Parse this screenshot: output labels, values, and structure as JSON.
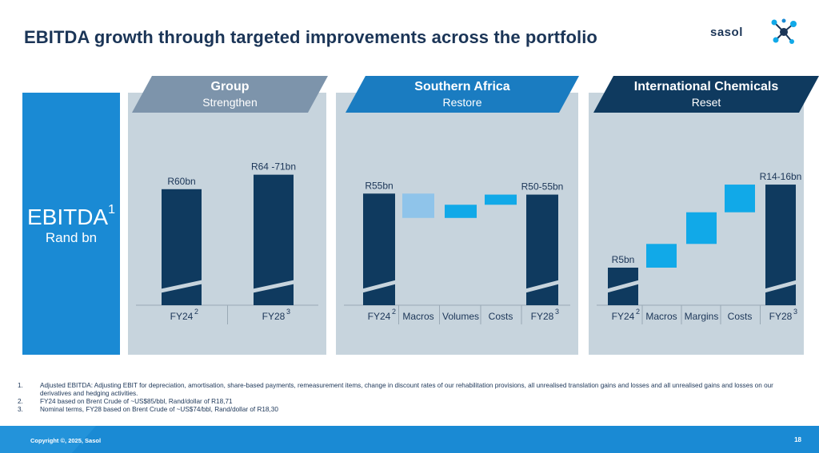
{
  "title": "EBITDA growth through targeted improvements across the portfolio",
  "logo_text": "sasol",
  "left_label": {
    "main": "EBITDA",
    "sup": "1",
    "sub": "Rand bn"
  },
  "colors": {
    "dark": "#0f3a5f",
    "light_blue": "#8fc4ea",
    "cyan": "#11a9e8",
    "panel": "#c7d4dd",
    "accent_blue": "#1a8ad4"
  },
  "chart_data": [
    {
      "type": "bar",
      "header": {
        "title": "Group",
        "subtitle": "Strengthen"
      },
      "categories": [
        "FY24",
        "FY28"
      ],
      "category_sups": [
        "2",
        "3"
      ],
      "bars": [
        {
          "label": "R60bn",
          "value": 60,
          "color": "dark",
          "broken": true
        },
        {
          "label": "R64 -71bn",
          "value": 67.5,
          "color": "dark",
          "broken": true
        }
      ]
    },
    {
      "type": "waterfall",
      "header": {
        "title": "Southern Africa",
        "subtitle": "Restore"
      },
      "categories": [
        "FY24",
        "Macros",
        "Volumes",
        "Costs",
        "FY28"
      ],
      "category_sups": [
        "2",
        "",
        "",
        "",
        "3"
      ],
      "bars": [
        {
          "label": "R55bn",
          "low": 0,
          "high": 55,
          "color": "dark",
          "broken": true
        },
        {
          "label": "",
          "low": 43,
          "high": 55,
          "color": "light_blue"
        },
        {
          "label": "",
          "low": 43,
          "high": 49.5,
          "color": "cyan"
        },
        {
          "label": "",
          "low": 49.5,
          "high": 54.5,
          "color": "cyan"
        },
        {
          "label": "R50-55bn",
          "low": 0,
          "high": 54.5,
          "color": "dark",
          "broken": true
        }
      ]
    },
    {
      "type": "waterfall",
      "header": {
        "title": "International Chemicals",
        "subtitle": "Reset"
      },
      "categories": [
        "FY24",
        "Macros",
        "Margins",
        "Costs",
        "FY28"
      ],
      "category_sups": [
        "2",
        "",
        "",
        "",
        "3"
      ],
      "bars": [
        {
          "label": "R5bn",
          "low": 0,
          "high": 5,
          "color": "dark",
          "broken": true
        },
        {
          "label": "",
          "low": 5,
          "high": 8,
          "color": "cyan"
        },
        {
          "label": "",
          "low": 8,
          "high": 12,
          "color": "cyan"
        },
        {
          "label": "",
          "low": 12,
          "high": 15.5,
          "color": "cyan"
        },
        {
          "label": "R14-16bn",
          "low": 0,
          "high": 15.5,
          "color": "dark",
          "broken": true
        }
      ]
    }
  ],
  "footnotes": [
    {
      "num": "1.",
      "text": "Adjusted EBITDA: Adjusting EBIT for depreciation, amortisation, share-based payments, remeasurement items, change in discount rates of our rehabilitation provisions, all unrealised translation gains and losses and all unrealised gains and losses on our derivatives and hedging activities."
    },
    {
      "num": "2.",
      "text": "FY24 based on Brent Crude of ~US$85/bbl, Rand/dollar of R18,71"
    },
    {
      "num": "3.",
      "text": "Nominal terms, FY28 based on Brent Crude of ~US$74/bbl, Rand/dollar of R18,30"
    }
  ],
  "footer": {
    "copyright": "Copyright ©, 2025, Sasol",
    "page": "18"
  }
}
